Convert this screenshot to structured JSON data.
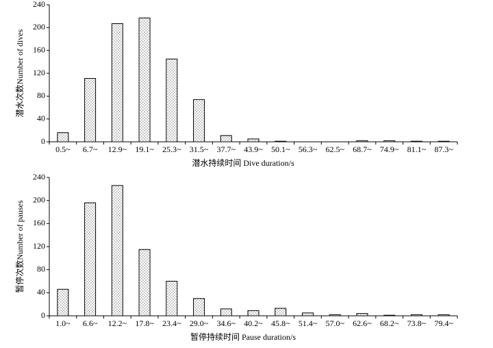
{
  "chart_data": [
    {
      "type": "bar",
      "x_label": "潜水持续时间 Dive duration/s",
      "y_label": "潜水次数Number of dives",
      "categories": [
        "0.5~",
        "6.7~",
        "12.9~",
        "19.1~",
        "25.3~",
        "31.5~",
        "37.7~",
        "43.9~",
        "50.1~",
        "56.3~",
        "62.5~",
        "68.7~",
        "74.9~",
        "81.1~",
        "87.3~"
      ],
      "values": [
        16,
        111,
        207,
        217,
        145,
        74,
        11,
        5,
        1,
        0,
        0,
        2,
        2,
        1,
        1
      ],
      "ylim": [
        0,
        240
      ],
      "yticks": [
        0,
        40,
        80,
        120,
        160,
        200,
        240
      ],
      "color": "#000000"
    },
    {
      "type": "bar",
      "x_label": "暂停持续时间 Pause duration/s",
      "y_label": "暂停次数Number of pauses",
      "categories": [
        "1.0~",
        "6.6~",
        "12.2~",
        "17.8~",
        "23.4~",
        "29.0~",
        "34.6~",
        "40.2~",
        "45.8~",
        "51.4~",
        "57.0~",
        "62.6~",
        "68.2~",
        "73.8~",
        "79.4~"
      ],
      "values": [
        46,
        196,
        226,
        115,
        60,
        30,
        12,
        9,
        13,
        5,
        2,
        4,
        1,
        2,
        2
      ],
      "ylim": [
        0,
        240
      ],
      "yticks": [
        0,
        40,
        80,
        120,
        160,
        200,
        240
      ],
      "color": "#000000"
    }
  ]
}
